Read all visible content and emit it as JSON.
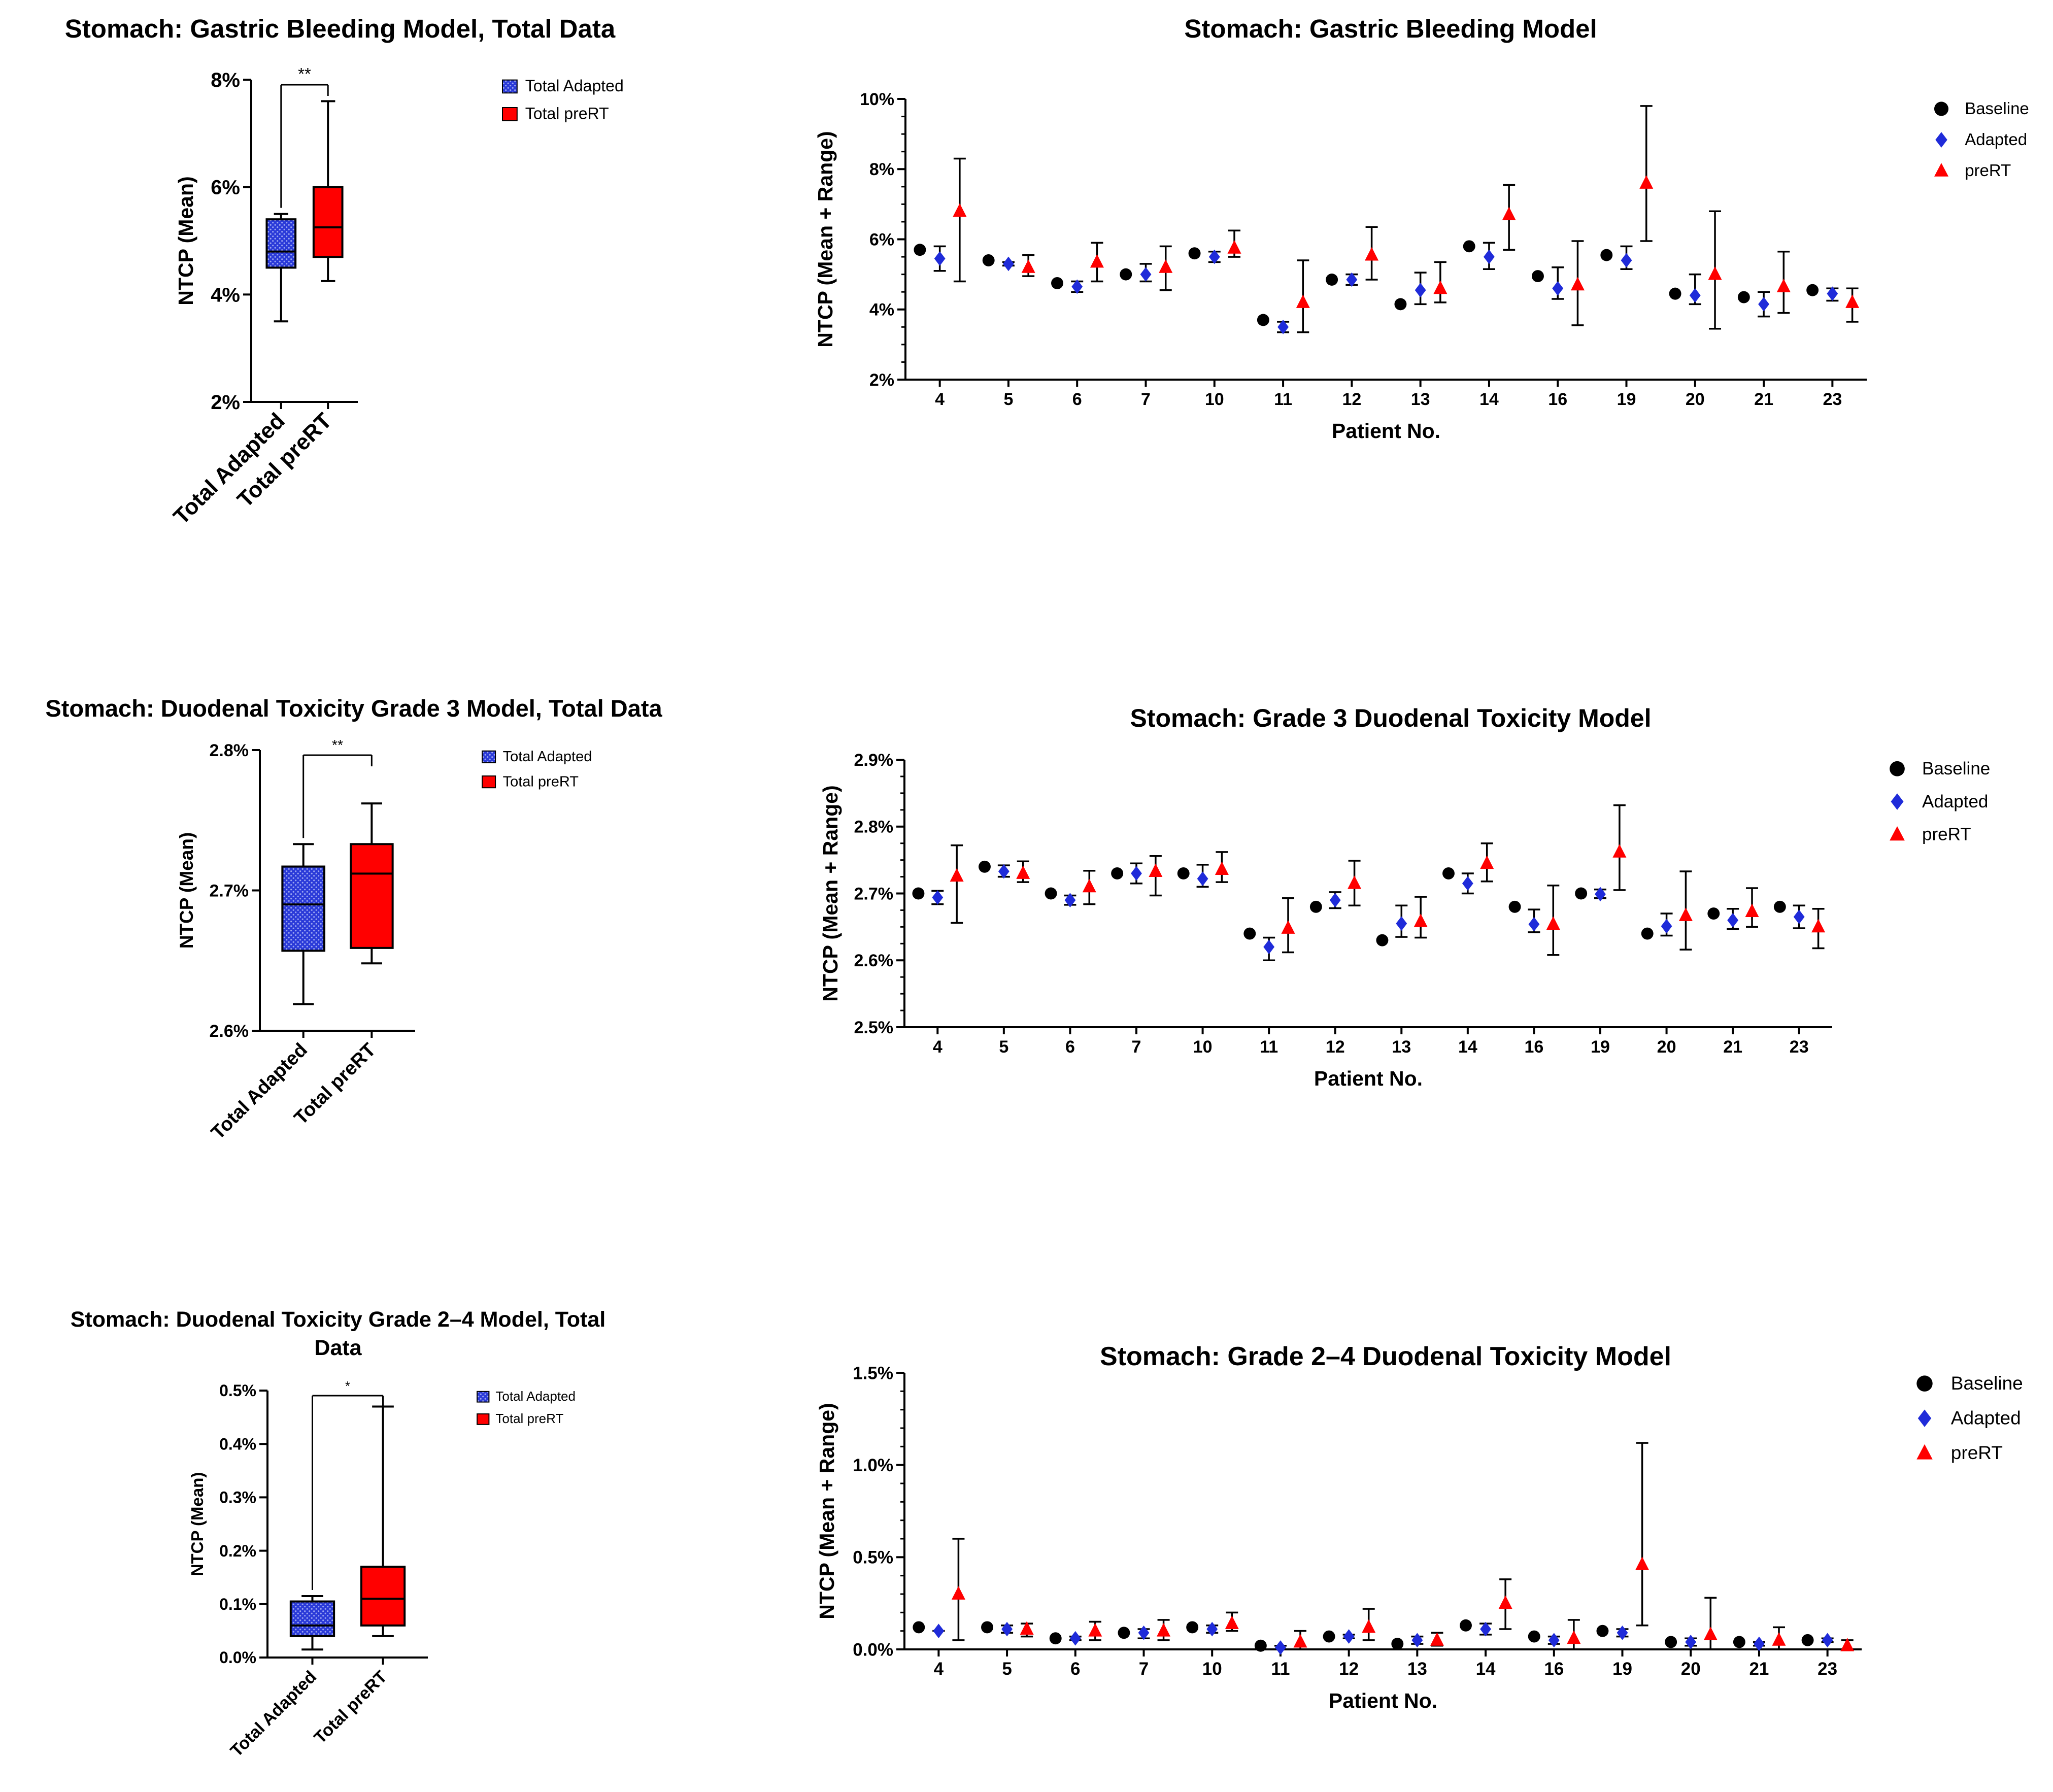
{
  "figure": "Stomach NTCP comparison: adapted vs preRT plans",
  "colors": {
    "adapted": "#1f2bd9",
    "prert": "#ff0000",
    "baseline": "#000000"
  },
  "patients": [
    "4",
    "5",
    "6",
    "7",
    "10",
    "11",
    "12",
    "13",
    "14",
    "16",
    "19",
    "20",
    "21",
    "23"
  ],
  "chart_data": [
    {
      "id": "gb_box",
      "type": "box",
      "title": "Stomach: Gastric Bleeding Model, Total Data",
      "ylabel": "NTCP (Mean)",
      "ylim": [
        2,
        8
      ],
      "yticks": [
        2,
        4,
        6,
        8
      ],
      "tick_labels": [
        "2%",
        "4%",
        "6%",
        "8%"
      ],
      "decimals": 0,
      "categories": [
        "Total Adapted",
        "Total preRT"
      ],
      "legend": [
        "Total Adapted",
        "Total preRT"
      ],
      "boxes": [
        {
          "name": "Total Adapted",
          "min": 3.5,
          "q1": 4.5,
          "median": 4.8,
          "q3": 5.4,
          "max": 5.5
        },
        {
          "name": "Total preRT",
          "min": 4.25,
          "q1": 4.7,
          "median": 5.25,
          "q3": 6.0,
          "max": 7.6
        }
      ],
      "significance": "**"
    },
    {
      "id": "gb_pts",
      "type": "scatter",
      "title": "Stomach: Gastric Bleeding Model",
      "xlabel": "Patient  No.",
      "ylabel": "NTCP  (Mean + Range)",
      "ylim": [
        2,
        10
      ],
      "yticks": [
        2,
        4,
        6,
        8,
        10
      ],
      "tick_labels": [
        "2%",
        "4%",
        "6%",
        "8%",
        "10%"
      ],
      "decimals": 0,
      "legend": [
        "Baseline",
        "Adapted",
        "preRT"
      ],
      "series": [
        {
          "name": "Baseline",
          "values": [
            5.7,
            5.4,
            4.75,
            5.0,
            5.6,
            3.7,
            4.85,
            4.15,
            5.8,
            4.95,
            5.55,
            4.45,
            4.35,
            4.55
          ]
        },
        {
          "name": "Adapted",
          "values": [
            5.45,
            5.3,
            4.65,
            5.0,
            5.5,
            3.5,
            4.85,
            4.55,
            5.5,
            4.6,
            5.4,
            4.4,
            4.15,
            4.45
          ],
          "lo": [
            5.1,
            5.25,
            4.5,
            4.8,
            5.35,
            3.35,
            4.7,
            4.15,
            5.15,
            4.3,
            5.15,
            4.15,
            3.8,
            4.25
          ],
          "hi": [
            5.8,
            5.35,
            4.8,
            5.3,
            5.65,
            3.65,
            5.0,
            5.05,
            5.9,
            5.2,
            5.8,
            5.0,
            4.5,
            4.6
          ]
        },
        {
          "name": "preRT",
          "values": [
            6.8,
            5.2,
            5.35,
            5.2,
            5.75,
            4.2,
            5.55,
            4.6,
            6.7,
            4.7,
            7.6,
            5.0,
            4.65,
            4.2
          ],
          "lo": [
            4.8,
            4.95,
            4.8,
            4.55,
            5.5,
            3.35,
            4.85,
            4.2,
            5.7,
            3.55,
            5.95,
            3.45,
            3.9,
            3.65
          ],
          "hi": [
            8.3,
            5.55,
            5.9,
            5.8,
            6.25,
            5.4,
            6.35,
            5.35,
            7.55,
            5.95,
            9.8,
            6.8,
            5.65,
            4.6
          ]
        }
      ]
    },
    {
      "id": "d3_box",
      "type": "box",
      "title": "Stomach: Duodenal Toxicity Grade 3 Model, Total Data",
      "ylabel": "NTCP (Mean)",
      "ylim": [
        2.6,
        2.8
      ],
      "yticks": [
        2.6,
        2.7,
        2.8
      ],
      "tick_labels": [
        "2.6%",
        "2.7%",
        "2.8%"
      ],
      "decimals": 1,
      "categories": [
        "Total Adapted",
        "Total preRT"
      ],
      "legend": [
        "Total Adapted",
        "Total preRT"
      ],
      "boxes": [
        {
          "name": "Total Adapted",
          "min": 2.619,
          "q1": 2.657,
          "median": 2.69,
          "q3": 2.717,
          "max": 2.733
        },
        {
          "name": "Total preRT",
          "min": 2.648,
          "q1": 2.659,
          "median": 2.712,
          "q3": 2.733,
          "max": 2.762
        }
      ],
      "significance": "**"
    },
    {
      "id": "d3_pts",
      "type": "scatter",
      "title": "Stomach: Grade 3 Duodenal Toxicity Model",
      "xlabel": "Patient  No.",
      "ylabel": "NTCP  (Mean + Range)",
      "ylim": [
        2.5,
        2.9
      ],
      "yticks": [
        2.5,
        2.6,
        2.7,
        2.8,
        2.9
      ],
      "tick_labels": [
        "2.5%",
        "2.6%",
        "2.7%",
        "2.8%",
        "2.9%"
      ],
      "decimals": 1,
      "legend": [
        "Baseline",
        "Adapted",
        "preRT"
      ],
      "series": [
        {
          "name": "Baseline",
          "values": [
            2.7,
            2.74,
            2.7,
            2.73,
            2.73,
            2.64,
            2.68,
            2.63,
            2.73,
            2.68,
            2.7,
            2.64,
            2.67,
            2.68
          ]
        },
        {
          "name": "Adapted",
          "values": [
            2.694,
            2.733,
            2.69,
            2.73,
            2.722,
            2.62,
            2.69,
            2.655,
            2.715,
            2.654,
            2.699,
            2.651,
            2.66,
            2.665
          ],
          "lo": [
            2.684,
            2.725,
            2.683,
            2.715,
            2.71,
            2.6,
            2.678,
            2.635,
            2.7,
            2.642,
            2.693,
            2.637,
            2.647,
            2.648
          ],
          "hi": [
            2.704,
            2.742,
            2.697,
            2.745,
            2.743,
            2.634,
            2.702,
            2.682,
            2.73,
            2.676,
            2.706,
            2.67,
            2.677,
            2.682
          ]
        },
        {
          "name": "preRT",
          "values": [
            2.726,
            2.73,
            2.71,
            2.733,
            2.736,
            2.648,
            2.715,
            2.658,
            2.745,
            2.654,
            2.762,
            2.667,
            2.673,
            2.65
          ],
          "lo": [
            2.656,
            2.717,
            2.684,
            2.697,
            2.717,
            2.612,
            2.682,
            2.634,
            2.718,
            2.608,
            2.705,
            2.616,
            2.65,
            2.618
          ],
          "hi": [
            2.772,
            2.748,
            2.734,
            2.756,
            2.762,
            2.693,
            2.749,
            2.695,
            2.775,
            2.712,
            2.832,
            2.733,
            2.708,
            2.677
          ]
        }
      ]
    },
    {
      "id": "d24_box",
      "type": "box",
      "title": "Stomach: Duodenal Toxicity Grade 2–4  Model, Total Data",
      "ylabel": "NTCP (Mean)",
      "ylim": [
        0,
        0.5
      ],
      "yticks": [
        0,
        0.1,
        0.2,
        0.3,
        0.4,
        0.5
      ],
      "tick_labels": [
        "0.0%",
        "0.1%",
        "0.2%",
        "0.3%",
        "0.4%",
        "0.5%"
      ],
      "decimals": 1,
      "categories": [
        "Total Adapted",
        "Total preRT"
      ],
      "legend": [
        "Total Adapted",
        "Total preRT"
      ],
      "boxes": [
        {
          "name": "Total Adapted",
          "min": 0.015,
          "q1": 0.04,
          "median": 0.06,
          "q3": 0.105,
          "max": 0.115
        },
        {
          "name": "Total preRT",
          "min": 0.04,
          "q1": 0.06,
          "median": 0.11,
          "q3": 0.17,
          "max": 0.47
        }
      ],
      "significance": "*"
    },
    {
      "id": "d24_pts",
      "type": "scatter",
      "title": "Stomach: Grade 2–4 Duodenal Toxicity Model",
      "xlabel": "Patient No.",
      "ylabel": "NTCP (Mean + Range)",
      "ylim": [
        0,
        1.5
      ],
      "yticks": [
        0,
        0.5,
        1.0,
        1.5
      ],
      "tick_labels": [
        "0.0%",
        "0.5%",
        "1.0%",
        "1.5%"
      ],
      "decimals": 1,
      "legend": [
        "Baseline",
        "Adapted",
        "preRT"
      ],
      "series": [
        {
          "name": "Baseline",
          "values": [
            0.12,
            0.12,
            0.06,
            0.09,
            0.12,
            0.02,
            0.07,
            0.03,
            0.13,
            0.07,
            0.1,
            0.04,
            0.04,
            0.05
          ]
        },
        {
          "name": "Adapted",
          "values": [
            0.1,
            0.11,
            0.06,
            0.09,
            0.11,
            0.01,
            0.07,
            0.05,
            0.11,
            0.05,
            0.09,
            0.04,
            0.03,
            0.05
          ],
          "lo": [
            0.1,
            0.09,
            0.05,
            0.06,
            0.09,
            0.0,
            0.06,
            0.03,
            0.08,
            0.03,
            0.07,
            0.02,
            0.02,
            0.04
          ],
          "hi": [
            0.1,
            0.13,
            0.07,
            0.11,
            0.13,
            0.02,
            0.08,
            0.07,
            0.14,
            0.07,
            0.11,
            0.06,
            0.04,
            0.06
          ]
        },
        {
          "name": "preRT",
          "values": [
            0.3,
            0.11,
            0.1,
            0.1,
            0.14,
            0.04,
            0.12,
            0.05,
            0.25,
            0.06,
            0.46,
            0.08,
            0.05,
            0.02
          ],
          "lo": [
            0.05,
            0.07,
            0.05,
            0.05,
            0.1,
            0.0,
            0.05,
            0.02,
            0.11,
            0.0,
            0.13,
            0.0,
            0.0,
            0.0
          ],
          "hi": [
            0.6,
            0.14,
            0.15,
            0.16,
            0.2,
            0.1,
            0.22,
            0.09,
            0.38,
            0.16,
            1.12,
            0.28,
            0.12,
            0.05
          ]
        }
      ]
    }
  ]
}
